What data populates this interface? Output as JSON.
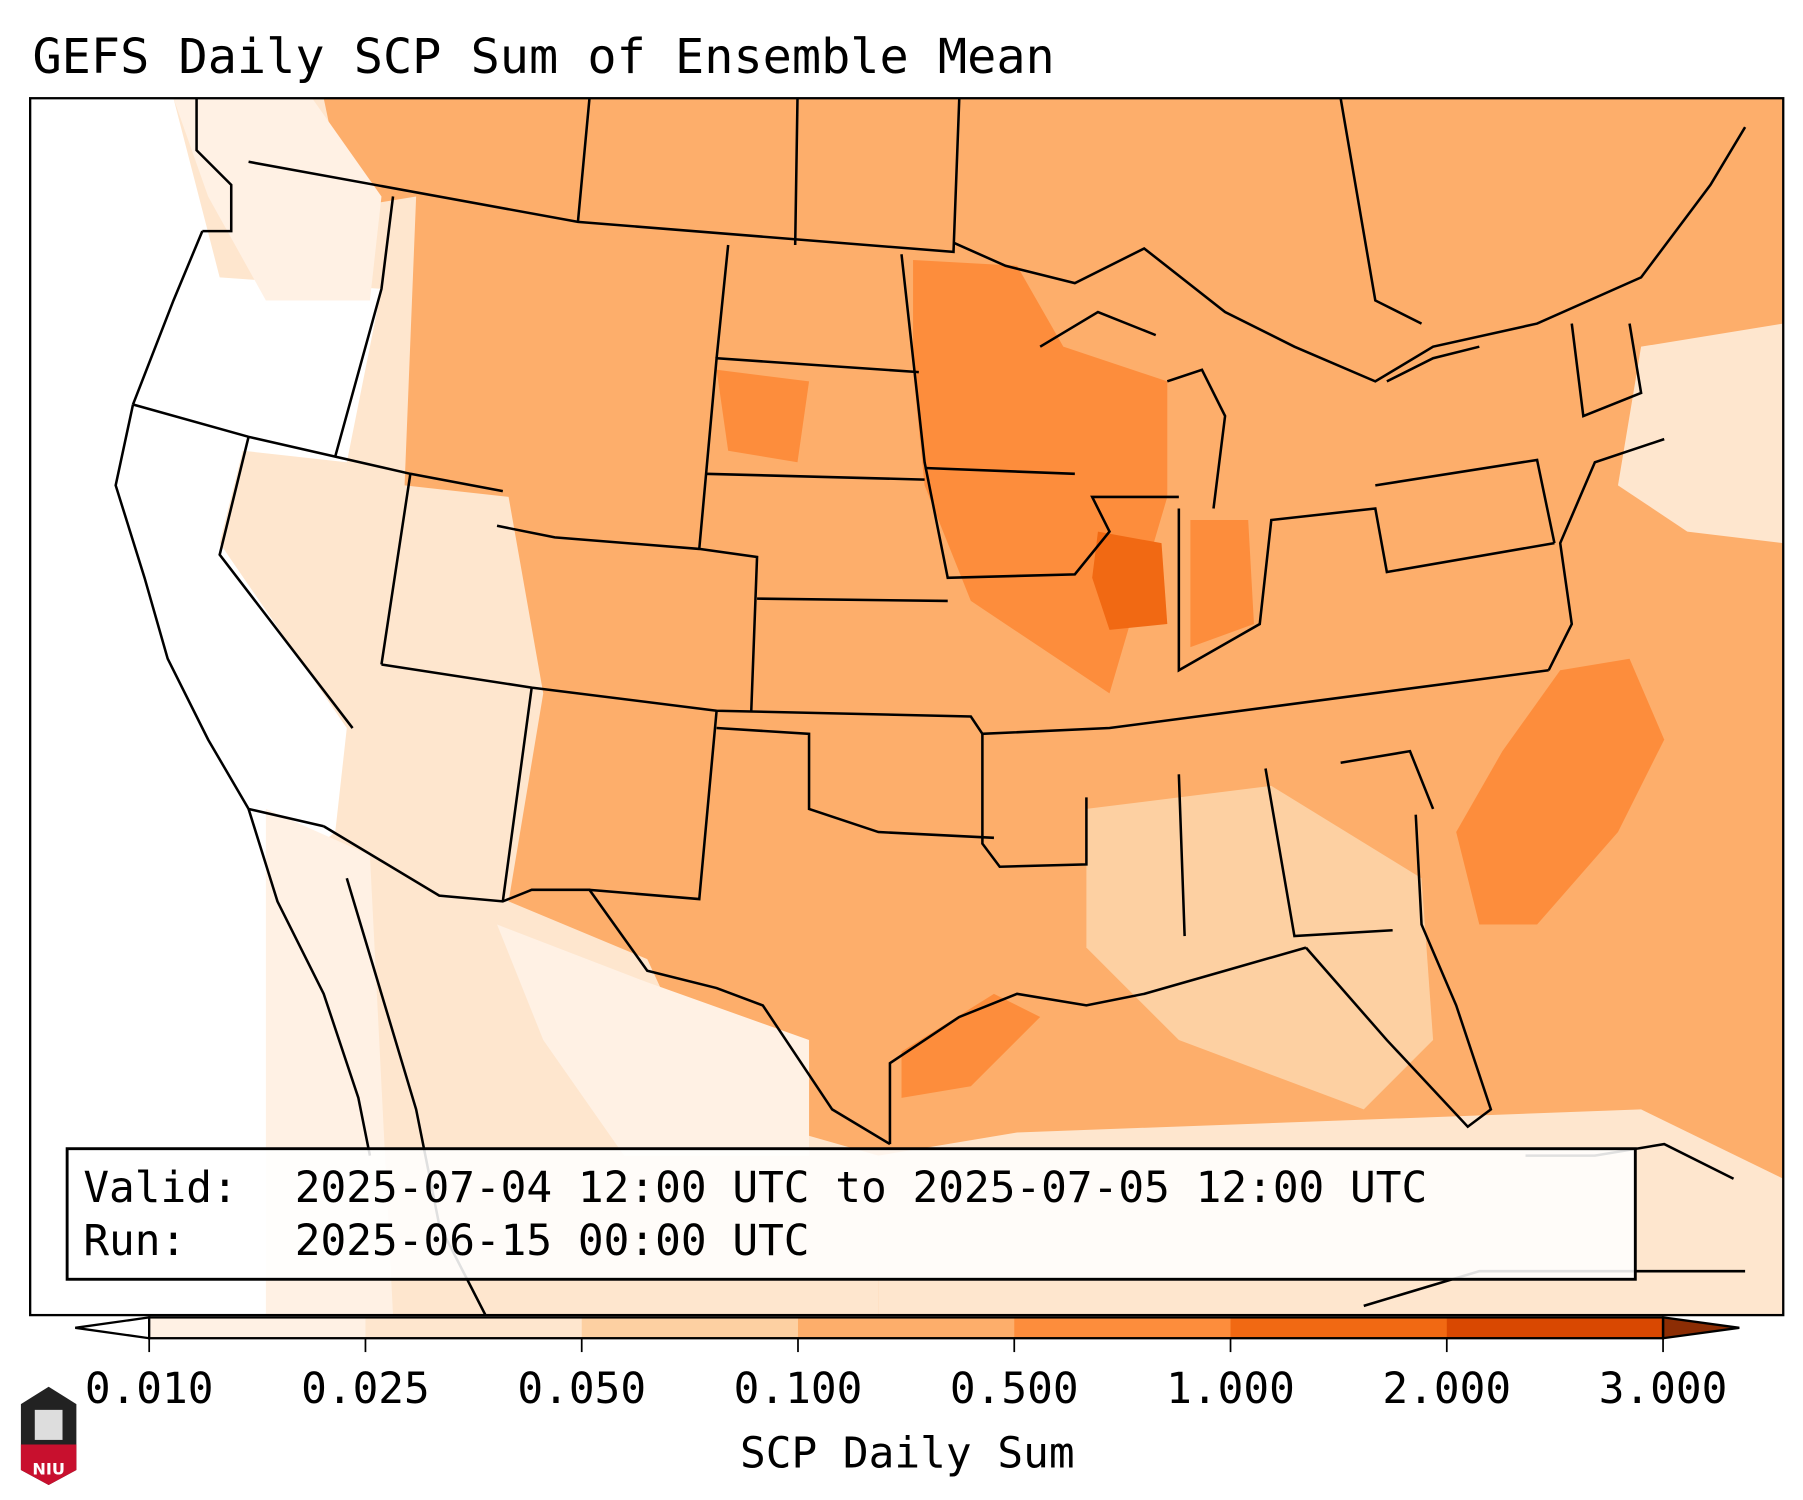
{
  "title": "GEFS Daily SCP Sum of Ensemble Mean",
  "info_box": {
    "valid_label": "Valid:",
    "valid_value": "2025-07-04 12:00 UTC to 2025-07-05 12:00 UTC",
    "run_label": "Run:",
    "run_value": "2025-06-15 00:00 UTC"
  },
  "colorbar": {
    "label": "SCP Daily Sum",
    "ticks": [
      "0.010",
      "0.025",
      "0.050",
      "0.100",
      "0.500",
      "1.000",
      "2.000",
      "3.000"
    ],
    "colors": [
      "#fff1e4",
      "#fee6ce",
      "#fdd0a2",
      "#fdae6b",
      "#fd8d3c",
      "#f16913",
      "#d94801",
      "#8c2d04"
    ],
    "under_color": "#ffffff"
  },
  "logo": {
    "text": "NIU",
    "color": "#c8102e"
  }
}
